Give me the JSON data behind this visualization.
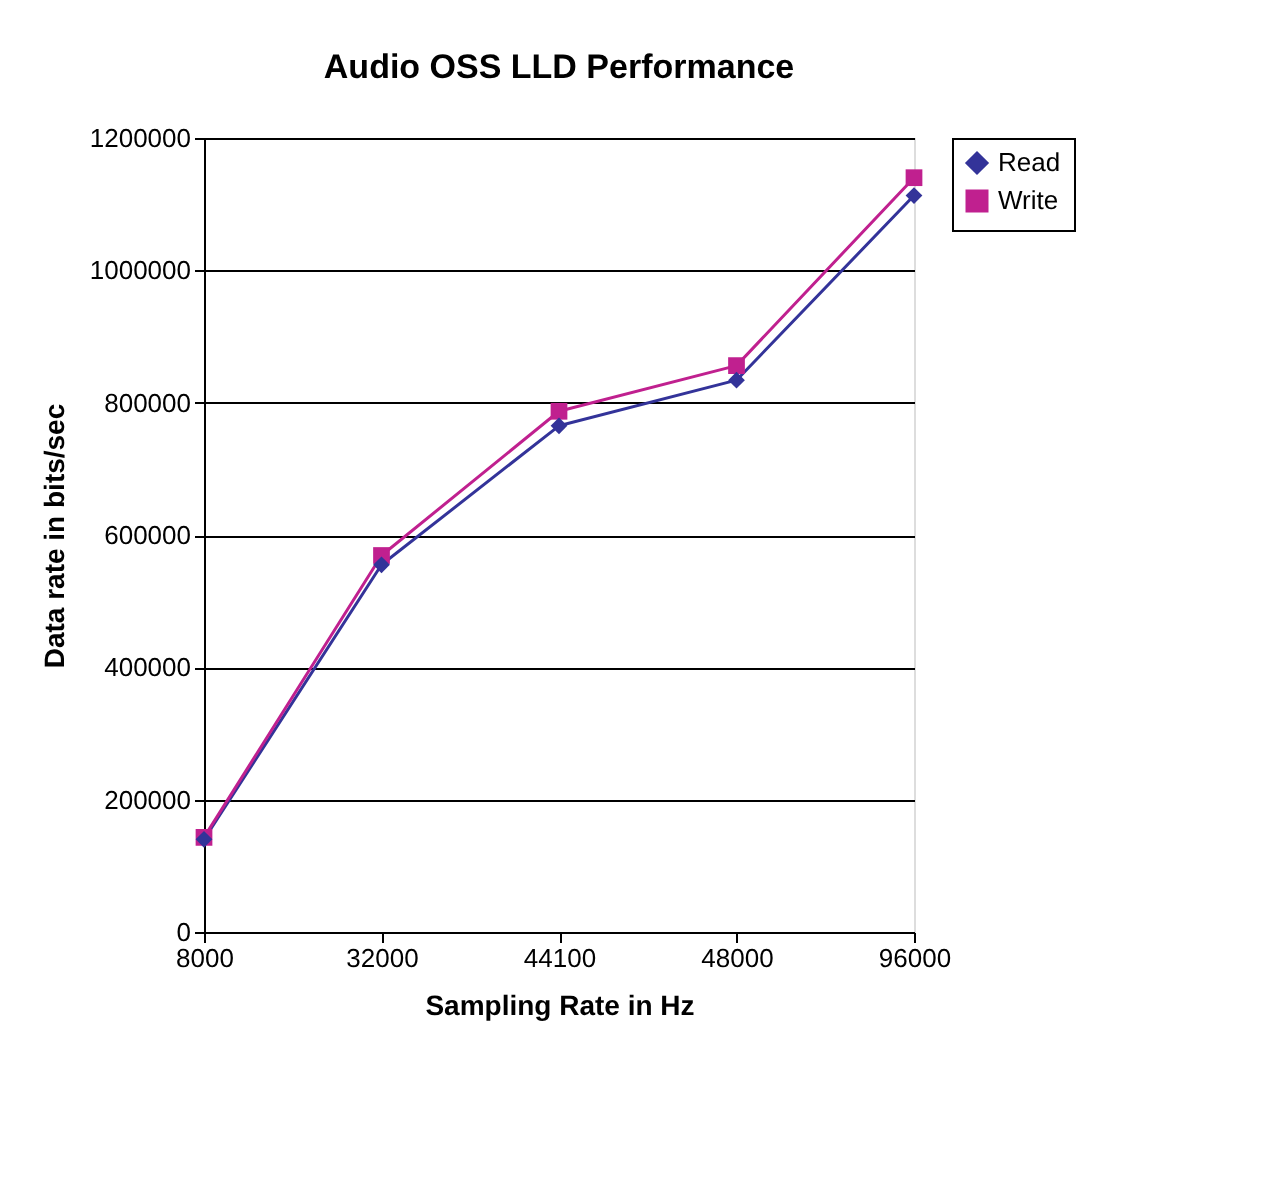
{
  "chart_data": {
    "type": "line",
    "title": "Audio OSS LLD Performance",
    "xlabel": "Sampling Rate in Hz",
    "ylabel": "Data rate in bits/sec",
    "categories": [
      "8000",
      "32000",
      "44100",
      "48000",
      "96000"
    ],
    "series": [
      {
        "name": "Read",
        "color": "#333399",
        "marker": "diamond",
        "values": [
          140000,
          555000,
          765000,
          834000,
          1113000
        ]
      },
      {
        "name": "Write",
        "color": "#c0208f",
        "marker": "square",
        "values": [
          143000,
          569000,
          787000,
          856000,
          1140000
        ]
      }
    ],
    "ylim": [
      0,
      1200000
    ],
    "yticks": [
      0,
      200000,
      400000,
      600000,
      800000,
      1000000,
      1200000
    ],
    "grid": "y",
    "legend": "right",
    "line_style": "solid"
  }
}
